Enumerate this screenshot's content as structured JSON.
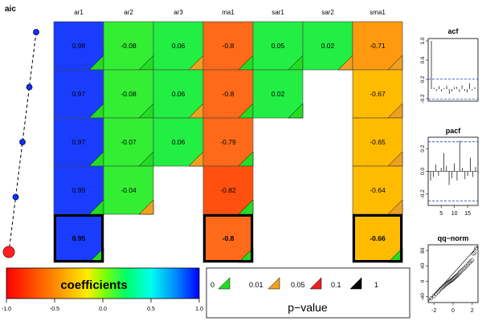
{
  "chart_data": [
    {
      "type": "line",
      "title": "aic",
      "values": [
        5,
        4,
        3,
        2,
        1
      ],
      "selected_index": 4
    },
    {
      "type": "heatmap",
      "columns": [
        "ar1",
        "ar2",
        "ar3",
        "ma1",
        "sar1",
        "sar2",
        "sma1"
      ],
      "rows": [
        {
          "values": [
            0.98,
            -0.08,
            0.06,
            -0.8,
            0.05,
            0.02,
            -0.71
          ],
          "pvalue_classes": [
            1,
            1,
            2,
            1,
            1,
            2,
            2
          ]
        },
        {
          "values": [
            0.97,
            -0.08,
            0.06,
            -0.8,
            0.02,
            null,
            -0.67
          ],
          "pvalue_classes": [
            1,
            1,
            2,
            1,
            1,
            null,
            2
          ]
        },
        {
          "values": [
            0.97,
            -0.07,
            0.06,
            -0.79,
            null,
            null,
            -0.65
          ],
          "pvalue_classes": [
            1,
            1,
            2,
            1,
            null,
            null,
            2
          ]
        },
        {
          "values": [
            0.99,
            -0.04,
            null,
            -0.82,
            null,
            null,
            -0.64
          ],
          "pvalue_classes": [
            1,
            2,
            null,
            1,
            null,
            null,
            2
          ]
        },
        {
          "values": [
            0.95,
            null,
            null,
            -0.8,
            null,
            null,
            -0.66
          ],
          "pvalue_classes": [
            1,
            null,
            null,
            1,
            null,
            null,
            1
          ]
        }
      ],
      "selected_row": 4,
      "colorbar": {
        "label": "coefficients",
        "ticks": [
          "-1.0",
          "-0.5",
          "0.0",
          "0.5",
          "1.0"
        ],
        "range": [
          -1,
          1
        ]
      },
      "pvalue_legend": {
        "title": "p−value",
        "breaks": [
          "0",
          "0.01",
          "0.05",
          "0.1",
          "1"
        ],
        "colors": [
          "#22dd22",
          "#f0a020",
          "#ee2020",
          "#000000"
        ]
      }
    },
    {
      "type": "bar",
      "title": "acf",
      "yticks": [
        "-0.2",
        "0.2",
        "0.6",
        "1.0"
      ],
      "ylim": [
        -0.25,
        1.05
      ],
      "conf_band": 0.21,
      "values": [
        1.0,
        0.03,
        -0.04,
        0.06,
        -0.05,
        0.02,
        0.07,
        -0.1,
        -0.05,
        0.04,
        0.05,
        -0.06,
        0.08,
        -0.04,
        -0.07,
        0.12,
        -0.03,
        0.04
      ]
    },
    {
      "type": "bar",
      "title": "pacf",
      "xticks": [
        "5",
        "10",
        "15"
      ],
      "yticks": [
        "-0.2",
        "0.0",
        "0.2"
      ],
      "ylim": [
        -0.3,
        0.3
      ],
      "conf_band": 0.26,
      "values": [
        -0.08,
        -0.05,
        0.06,
        -0.04,
        0.03,
        0.16,
        0.05,
        -0.12,
        -0.06,
        0.07,
        -0.08,
        0.27,
        0.03,
        -0.07,
        -0.04,
        0.12,
        -0.05,
        0.04
      ]
    },
    {
      "type": "scatter",
      "title": "qq−norm",
      "xticks": [
        "-2",
        "0",
        "2"
      ],
      "yticks": [
        "-40",
        "0",
        "40",
        "80"
      ],
      "xlim": [
        -2.6,
        2.6
      ],
      "ylim": [
        -55,
        95
      ],
      "points": [
        [
          -2.3,
          -44
        ],
        [
          -2.0,
          -38
        ],
        [
          -1.8,
          -33
        ],
        [
          -1.6,
          -28
        ],
        [
          -1.45,
          -24
        ],
        [
          -1.3,
          -20
        ],
        [
          -1.18,
          -17
        ],
        [
          -1.05,
          -15
        ],
        [
          -0.95,
          -12
        ],
        [
          -0.85,
          -10
        ],
        [
          -0.75,
          -8
        ],
        [
          -0.66,
          -6
        ],
        [
          -0.57,
          -4
        ],
        [
          -0.48,
          -3
        ],
        [
          -0.4,
          -1
        ],
        [
          -0.3,
          0
        ],
        [
          -0.22,
          2
        ],
        [
          -0.13,
          3
        ],
        [
          -0.05,
          5
        ],
        [
          0.04,
          7
        ],
        [
          0.12,
          9
        ],
        [
          0.21,
          11
        ],
        [
          0.3,
          13
        ],
        [
          0.4,
          15
        ],
        [
          0.5,
          17
        ],
        [
          0.6,
          20
        ],
        [
          0.7,
          23
        ],
        [
          0.82,
          26
        ],
        [
          0.95,
          29
        ],
        [
          1.1,
          33
        ],
        [
          1.25,
          36
        ],
        [
          1.4,
          40
        ],
        [
          1.55,
          44
        ],
        [
          1.7,
          48
        ],
        [
          1.85,
          52
        ],
        [
          2.0,
          55
        ],
        [
          2.1,
          72
        ],
        [
          2.25,
          74
        ],
        [
          2.4,
          86
        ]
      ],
      "line": [
        [
          -2.6,
          -52
        ],
        [
          2.6,
          92
        ]
      ]
    }
  ]
}
